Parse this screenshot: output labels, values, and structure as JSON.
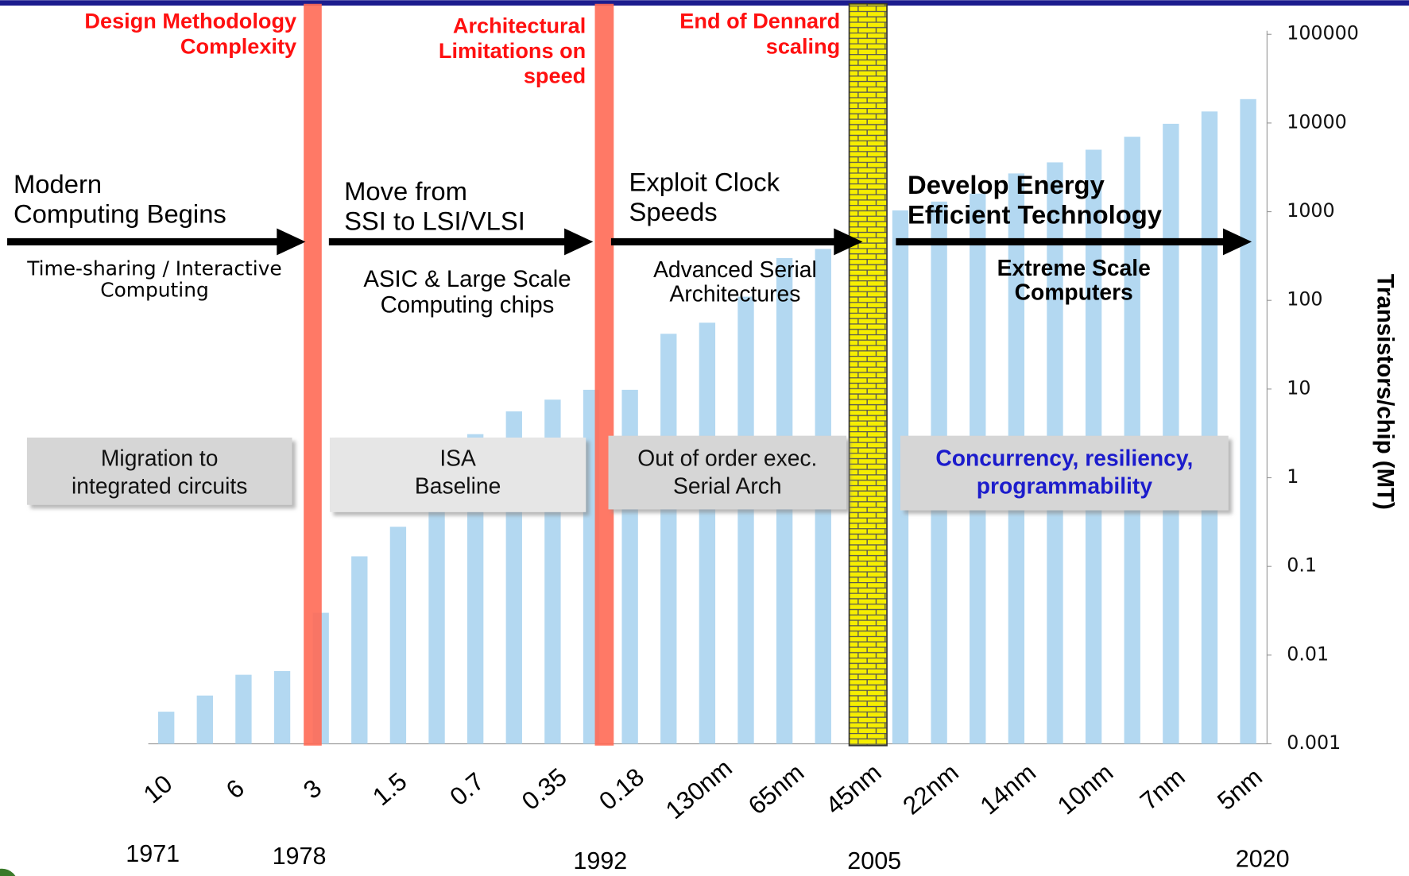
{
  "chart_data": {
    "type": "bar",
    "y_label": "Transistors/chip (MT)",
    "log_scale": true,
    "color": "#b3d8f1",
    "categories": [
      "10",
      null,
      "6",
      null,
      "3",
      null,
      "1.5",
      null,
      "0.7",
      null,
      "0.35",
      null,
      "0.18",
      null,
      "130nm",
      null,
      "65nm",
      null,
      "45nm",
      null,
      "22nm",
      null,
      "14nm",
      null,
      "10nm",
      null,
      "7nm",
      null,
      "5nm"
    ],
    "values": [
      0.0023,
      0.0035,
      0.006,
      0.0066,
      0.03,
      0.13,
      0.28,
      1.2,
      3.1,
      5.6,
      7.6,
      9.8,
      9.8,
      42,
      56,
      110,
      300,
      380,
      600,
      1035,
      1300,
      1600,
      2700,
      3600,
      5000,
      7000,
      9800,
      13500,
      18600
    ],
    "ylim": [
      0.001,
      100000
    ],
    "yticks": [
      0.001,
      0.01,
      0.1,
      1,
      10,
      100,
      1000,
      10000,
      100000
    ],
    "years": [
      "1971",
      "1978",
      "1992",
      "2005",
      "2020"
    ],
    "barriers": [
      [
        "Design Methodology",
        "Complexity"
      ],
      [
        "Architectural",
        "Limitations on",
        "speed"
      ],
      [
        "End of Dennard",
        "scaling"
      ]
    ],
    "phases": [
      {
        "heading": [
          "Modern",
          "Computing Begins"
        ],
        "detail": [
          "Time-sharing / Interactive",
          "Computing"
        ]
      },
      {
        "heading": [
          "Move from",
          "SSI to LSI/VLSI"
        ],
        "detail": [
          "ASIC & Large Scale",
          "Computing chips"
        ]
      },
      {
        "heading": [
          "Exploit Clock",
          "Speeds"
        ],
        "detail": [
          "Advanced Serial",
          "Architectures"
        ]
      },
      {
        "heading": [
          "Develop Energy",
          "Efficient Technology"
        ],
        "detail": [
          "Extreme Scale",
          "Computers"
        ]
      }
    ],
    "boxes": [
      [
        "Migration to",
        "integrated circuits"
      ],
      [
        "ISA",
        "Baseline"
      ],
      [
        "Out of order exec.",
        "Serial Arch"
      ],
      [
        "Concurrency, resiliency,",
        "programmability"
      ]
    ]
  }
}
